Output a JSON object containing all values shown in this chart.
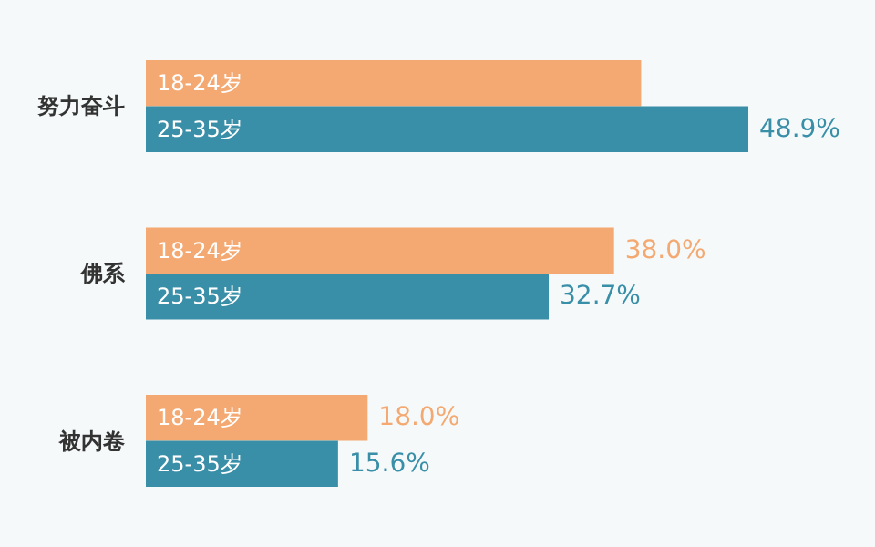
{
  "chart_data": {
    "type": "bar",
    "orientation": "horizontal",
    "categories": [
      "努力奋斗",
      "佛系",
      "被内卷"
    ],
    "series": [
      {
        "name": "18-24岁",
        "color": "#f4a972",
        "values": [
          40.2,
          38.0,
          18.0
        ],
        "value_labels": [
          null,
          "38.0%",
          "18.0%"
        ]
      },
      {
        "name": "25-35岁",
        "color": "#3a8fa8",
        "values": [
          48.9,
          32.7,
          15.6
        ],
        "value_labels": [
          "48.9%",
          "32.7%",
          "15.6%"
        ]
      }
    ],
    "legend": false
  }
}
